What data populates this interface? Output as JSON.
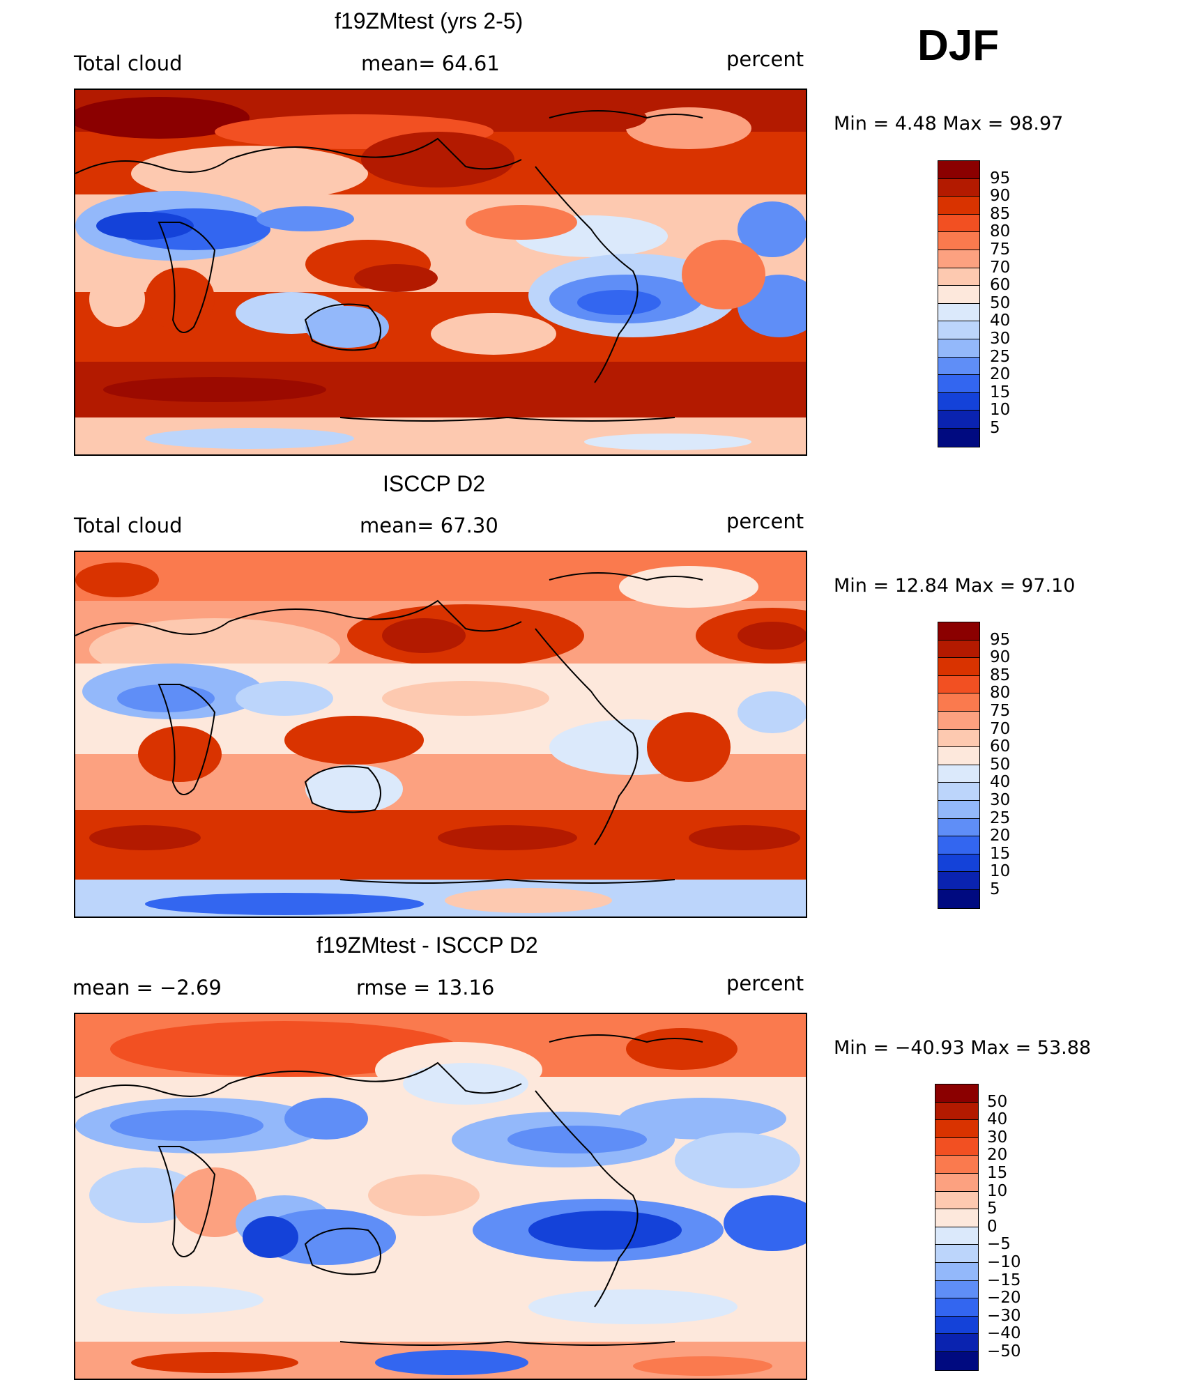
{
  "season": "DJF",
  "panels": [
    {
      "title": "f19ZMtest (yrs 2-5)",
      "left_label": "Total cloud",
      "center_label": "mean=   64.61",
      "units": "percent",
      "minmax": "Min =    4.48  Max =    98.97",
      "colorbar_labels": [
        "95",
        "90",
        "85",
        "80",
        "75",
        "70",
        "60",
        "50",
        "40",
        "30",
        "25",
        "20",
        "15",
        "10",
        "5"
      ]
    },
    {
      "title": "ISCCP D2",
      "left_label": "Total cloud",
      "center_label": "mean=   67.30",
      "units": "percent",
      "minmax": "Min =   12.84  Max =    97.10",
      "colorbar_labels": [
        "95",
        "90",
        "85",
        "80",
        "75",
        "70",
        "60",
        "50",
        "40",
        "30",
        "25",
        "20",
        "15",
        "10",
        "5"
      ]
    },
    {
      "title": "f19ZMtest - ISCCP D2",
      "left_label": "mean =    −2.69",
      "center_label": "rmse =    13.16",
      "units": "percent",
      "minmax": "Min = −40.93  Max =    53.88",
      "colorbar_labels": [
        "50",
        "40",
        "30",
        "20",
        "15",
        "10",
        "5",
        "0",
        "−5",
        "−10",
        "−15",
        "−20",
        "−30",
        "−40",
        "−50"
      ]
    }
  ],
  "colors": {
    "abs_scale": [
      "#8b0000",
      "#b31a00",
      "#d93300",
      "#f25022",
      "#fa7a4e",
      "#fca180",
      "#fdc9b0",
      "#fde8dc",
      "#dbe9fb",
      "#bcd5fb",
      "#93b8fa",
      "#5f8ef7",
      "#3366f0",
      "#1442d9",
      "#0a23b0",
      "#000a80"
    ],
    "diff_scale": [
      "#8b0000",
      "#b31a00",
      "#d93300",
      "#f25022",
      "#fa7a4e",
      "#fca180",
      "#fdc9b0",
      "#fde8dc",
      "#dbe9fb",
      "#bcd5fb",
      "#93b8fa",
      "#5f8ef7",
      "#3366f0",
      "#1442d9",
      "#0a23b0",
      "#000a80"
    ]
  },
  "chart_data": [
    {
      "type": "heatmap",
      "title": "f19ZMtest (yrs 2-5)",
      "variable": "Total cloud",
      "units": "percent",
      "mean": 64.61,
      "min": 4.48,
      "max": 98.97,
      "contour_levels": [
        5,
        10,
        15,
        20,
        25,
        30,
        40,
        50,
        60,
        70,
        75,
        80,
        85,
        90,
        95
      ]
    },
    {
      "type": "heatmap",
      "title": "ISCCP D2",
      "variable": "Total cloud",
      "units": "percent",
      "mean": 67.3,
      "min": 12.84,
      "max": 97.1,
      "contour_levels": [
        5,
        10,
        15,
        20,
        25,
        30,
        40,
        50,
        60,
        70,
        75,
        80,
        85,
        90,
        95
      ]
    },
    {
      "type": "heatmap",
      "title": "f19ZMtest - ISCCP D2",
      "units": "percent",
      "mean": -2.69,
      "rmse": 13.16,
      "min": -40.93,
      "max": 53.88,
      "contour_levels": [
        -50,
        -40,
        -30,
        -20,
        -15,
        -10,
        -5,
        0,
        5,
        10,
        15,
        20,
        30,
        40,
        50
      ]
    }
  ]
}
